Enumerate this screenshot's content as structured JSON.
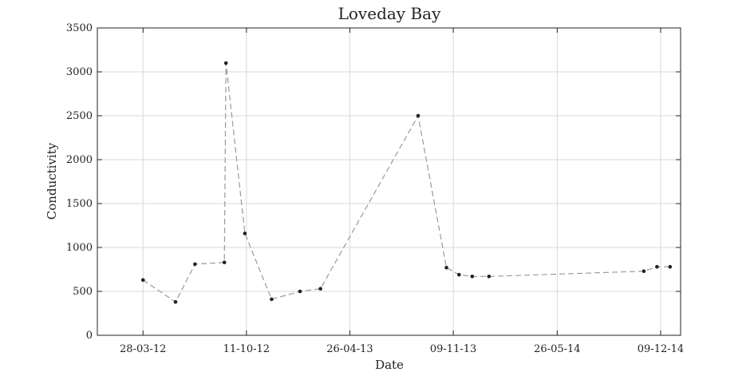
{
  "chart_data": {
    "type": "line",
    "title": "Loveday Bay",
    "xlabel": "Date",
    "ylabel": "Conductivity",
    "xlim": [
      "2012-01-01",
      "2015-01-16"
    ],
    "ylim": [
      0,
      3500
    ],
    "x_ticks": [
      {
        "label": "28-03-12",
        "date": "2012-03-28"
      },
      {
        "label": "11-10-12",
        "date": "2012-10-11"
      },
      {
        "label": "26-04-13",
        "date": "2013-04-26"
      },
      {
        "label": "09-11-13",
        "date": "2013-11-09"
      },
      {
        "label": "26-05-14",
        "date": "2014-05-26"
      },
      {
        "label": "09-12-14",
        "date": "2014-12-09"
      }
    ],
    "y_ticks": [
      0,
      500,
      1000,
      1500,
      2000,
      2500,
      3000,
      3500
    ],
    "grid": true,
    "line_style": "dashed",
    "colors": {
      "line": "#999999",
      "marker": "#222222",
      "grid": "#d9d9d9",
      "axes": "#222222"
    },
    "series": [
      {
        "x": [
          "2012-03-28",
          "2012-05-29",
          "2012-07-05",
          "2012-08-30",
          "2012-09-02",
          "2012-10-08",
          "2012-11-28",
          "2013-01-21",
          "2013-03-01",
          "2013-09-03",
          "2013-10-27",
          "2013-11-20",
          "2013-12-15",
          "2014-01-16",
          "2014-11-07",
          "2014-12-02",
          "2014-12-27"
        ],
        "y": [
          630,
          380,
          810,
          830,
          3100,
          1160,
          410,
          500,
          530,
          2500,
          770,
          690,
          670,
          670,
          730,
          780,
          780
        ]
      }
    ]
  }
}
